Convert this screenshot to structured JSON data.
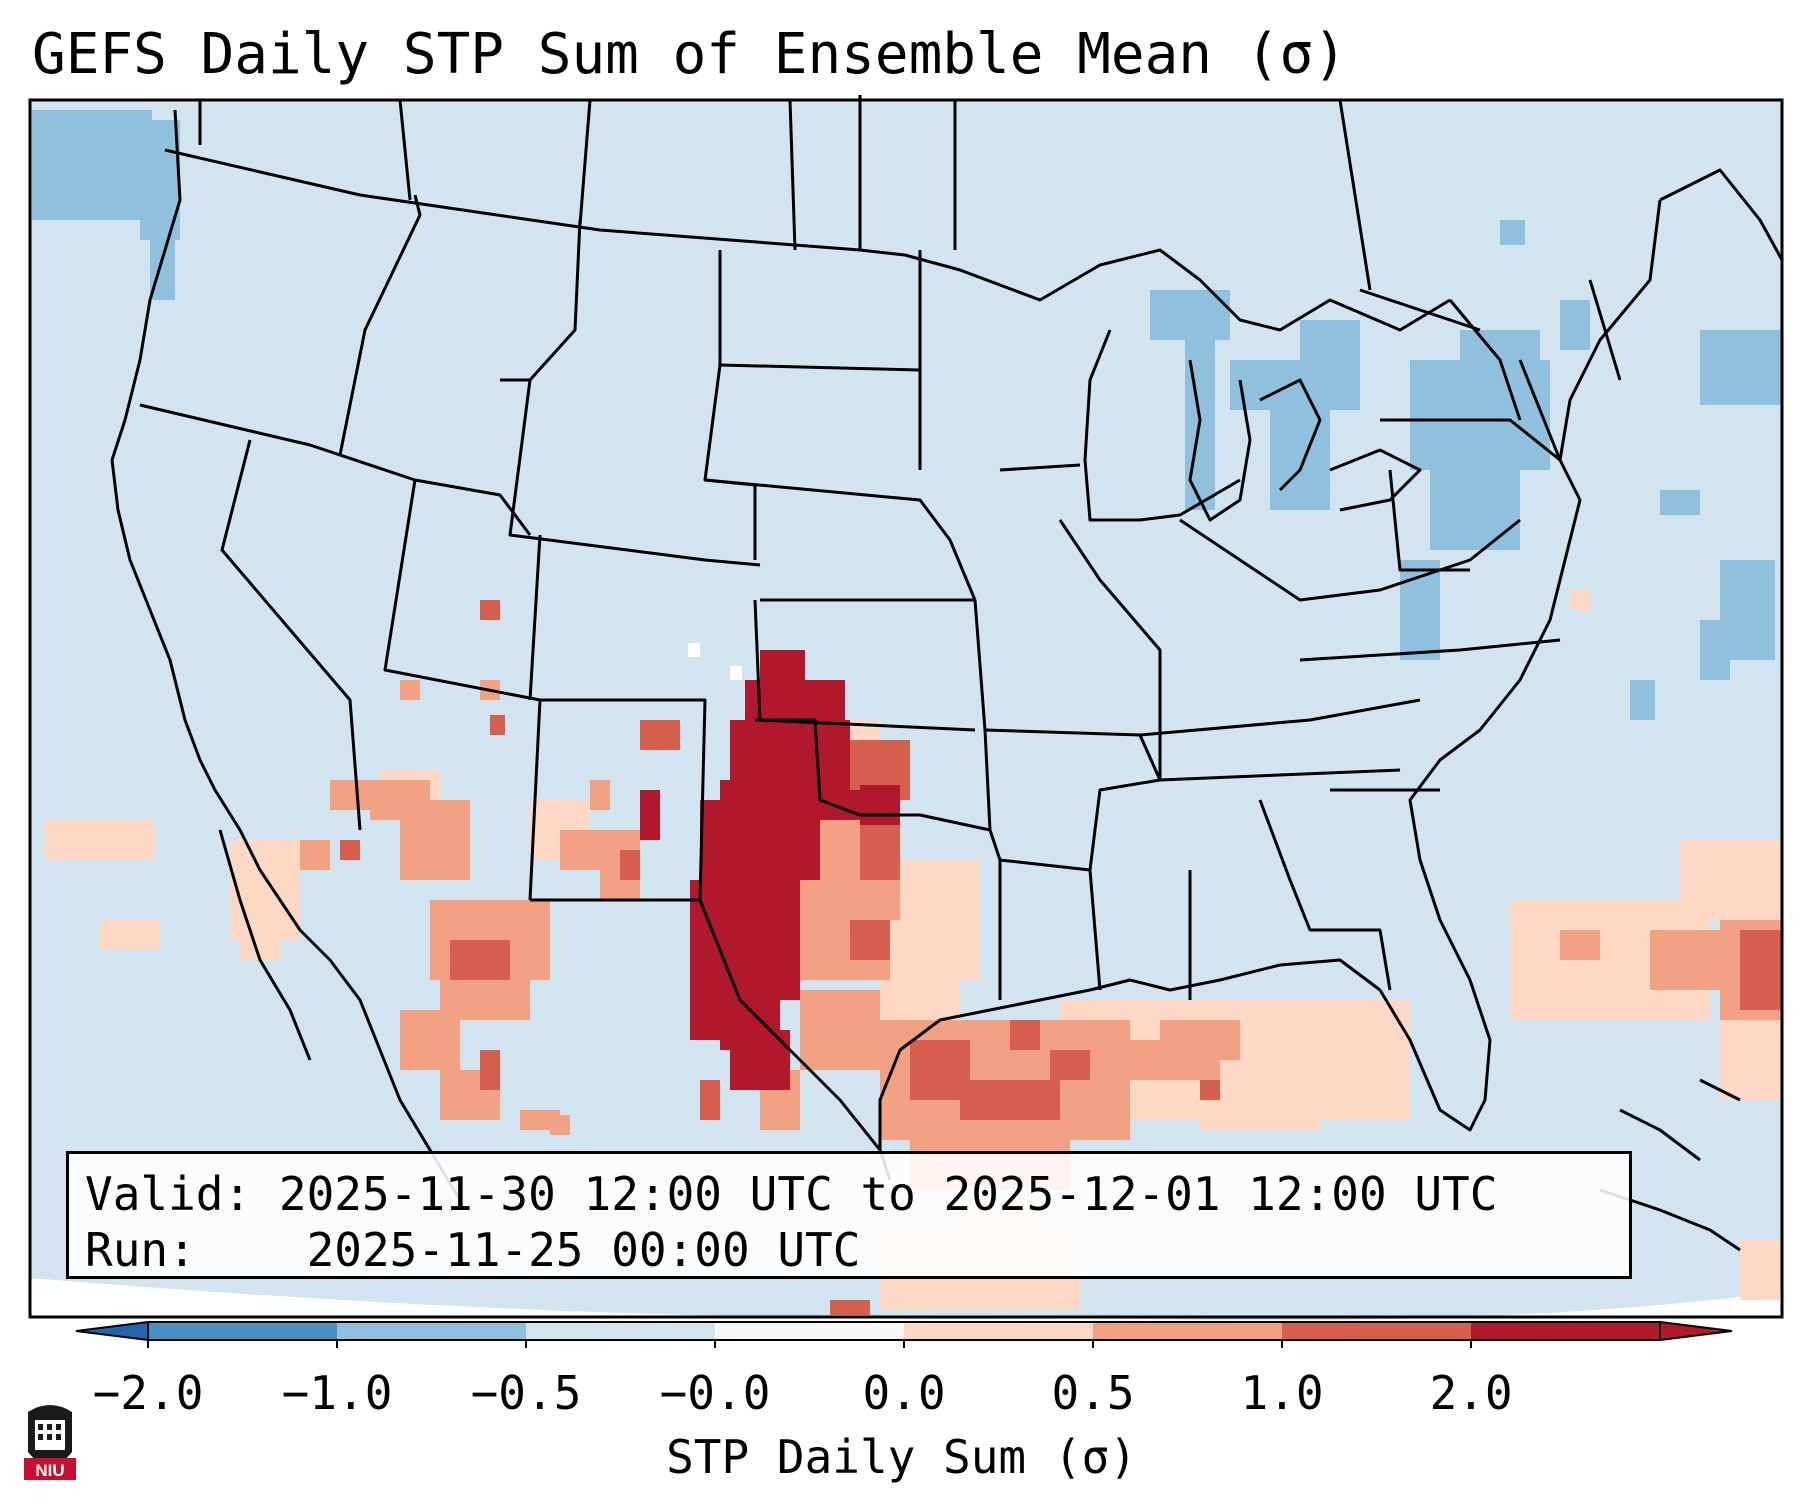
{
  "title": "GEFS Daily STP Sum of Ensemble Mean (σ)",
  "info": {
    "valid_label": "Valid:",
    "valid_value": "2025-11-30 12:00 UTC to 2025-12-01 12:00 UTC",
    "run_label": "Run:",
    "run_value": "2025-11-25 00:00 UTC"
  },
  "colorbar": {
    "label": "STP Daily Sum (σ)",
    "ticks": [
      "−2.0",
      "−1.0",
      "−0.5",
      "−0.0",
      "0.0",
      "0.5",
      "1.0",
      "2.0"
    ],
    "bins": [
      {
        "color": "#4a90c6"
      },
      {
        "color": "#8fc1de"
      },
      {
        "color": "#d2e4f0"
      },
      {
        "color": "#f7f7f7"
      },
      {
        "color": "#fdd8c5"
      },
      {
        "color": "#f2a283"
      },
      {
        "color": "#d6604d"
      },
      {
        "color": "#b2182b"
      }
    ],
    "under_color": "#2166ac",
    "over_color": "#b2182b"
  },
  "logo": {
    "text": "NIU",
    "icon": "niu-logo-icon"
  }
}
